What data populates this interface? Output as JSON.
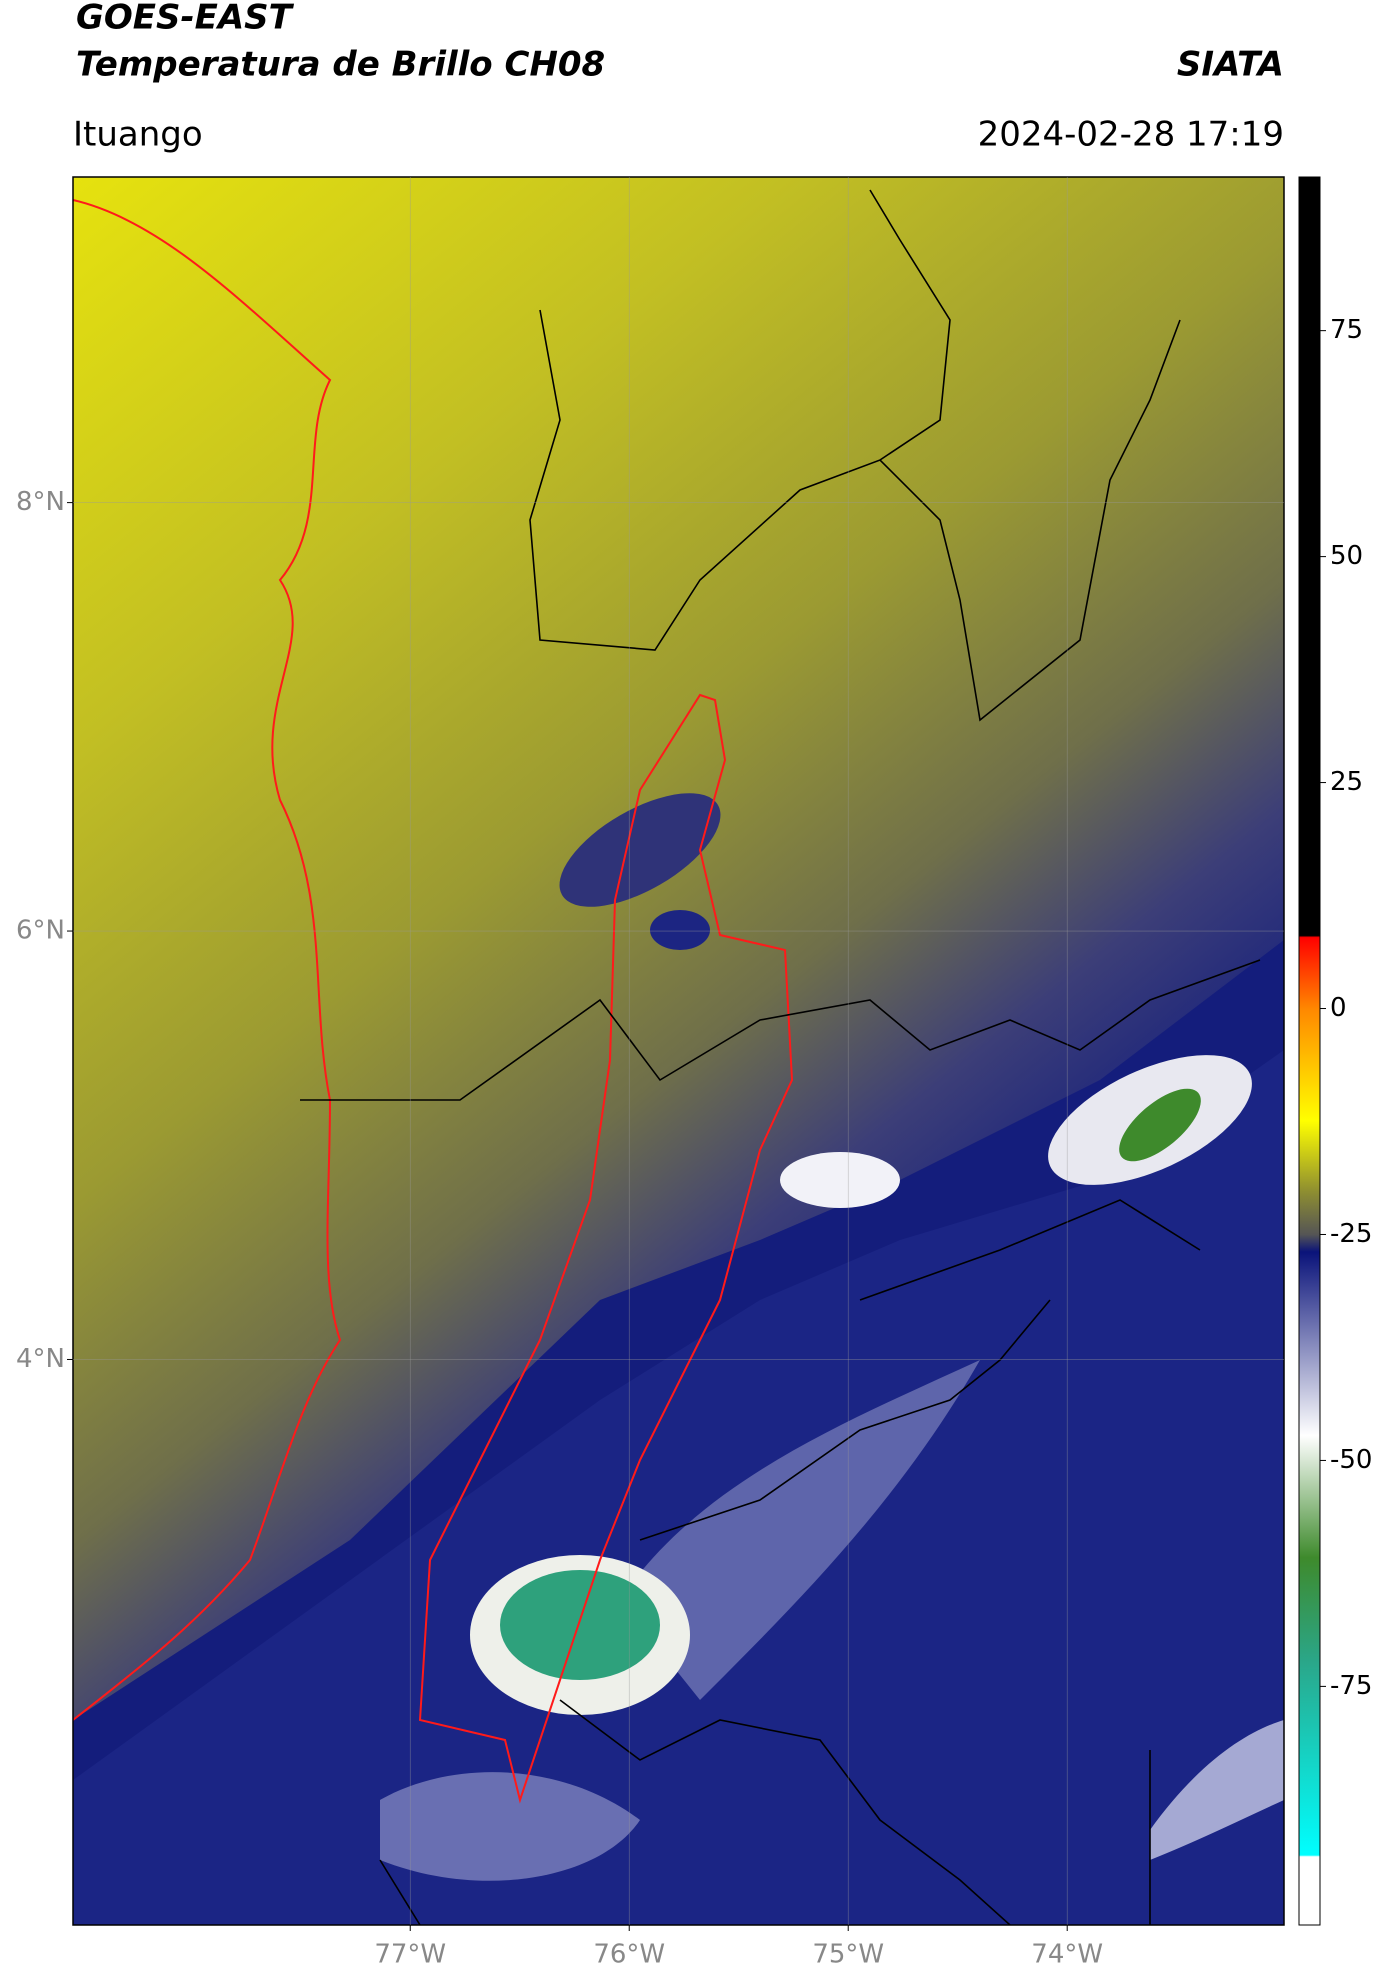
{
  "header": {
    "title": "GOES-EAST",
    "subtitle": "Temperatura de Brillo CH08",
    "brand": "SIATA",
    "region": "Ituango",
    "datetime": "2024-02-28 17:19"
  },
  "map": {
    "xlim": [
      -78.54,
      -73.01
    ],
    "ylim": [
      1.36,
      9.52
    ],
    "xticks": [
      {
        "value": -77,
        "label": "77°W"
      },
      {
        "value": -76,
        "label": "76°W"
      },
      {
        "value": -75,
        "label": "75°W"
      },
      {
        "value": -74,
        "label": "74°W"
      }
    ],
    "yticks": [
      {
        "value": 8,
        "label": "8°N"
      },
      {
        "value": 6,
        "label": "6°N"
      },
      {
        "value": 4,
        "label": "4°N"
      }
    ],
    "grid": true
  },
  "colorbar": {
    "clim": [
      -101.4,
      92
    ],
    "ticks": [
      75,
      50,
      25,
      0,
      -25,
      -50,
      -75
    ]
  }
}
